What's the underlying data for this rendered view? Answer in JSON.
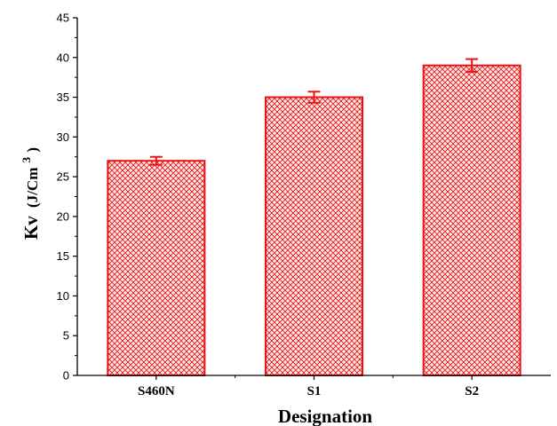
{
  "chart_data": {
    "type": "bar",
    "categories": [
      "S460N",
      "S1",
      "S2"
    ],
    "values": [
      27,
      35,
      39
    ],
    "errors": [
      0.5,
      0.7,
      0.8
    ],
    "xlabel": "Designation",
    "ylabel": {
      "main": "Kv",
      "unit_prefix": "(J/Cm",
      "unit_exponent": "3",
      "unit_suffix": ")"
    },
    "ylim": [
      0,
      45
    ],
    "yticks": [
      0,
      5,
      10,
      15,
      20,
      25,
      30,
      35,
      40,
      45
    ],
    "grid": false,
    "legend": "none",
    "colors": {
      "bar_edge": "#ee1111",
      "bar_hatch": "#ee1111",
      "bar_fill": "#fde8e8",
      "error_bar": "#ee1111",
      "axis": "#000000"
    }
  }
}
